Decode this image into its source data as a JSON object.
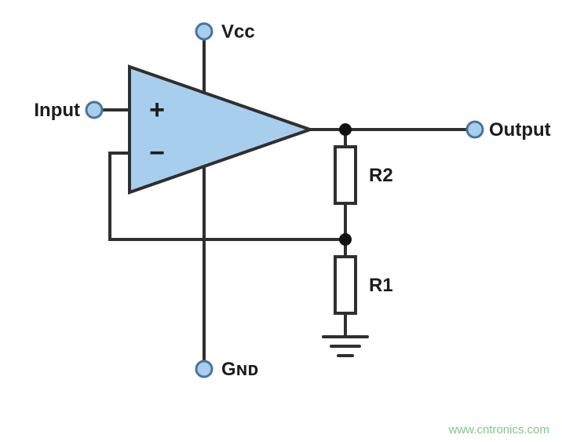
{
  "diagram": {
    "type": "schematic",
    "background_color": "#ffffff",
    "wire_color": "#2f2f2f",
    "wire_width": 4,
    "terminal": {
      "fill": "#a7ceed",
      "stroke": "#47749c",
      "stroke_width": 3,
      "radius": 10
    },
    "node": {
      "fill": "#111111",
      "radius": 8
    },
    "opamp": {
      "fill": "#a7ceed",
      "stroke": "#2f2f2f",
      "stroke_width": 4,
      "plus": "+",
      "minus": "−",
      "symbol_fontsize": 34
    },
    "resistor": {
      "fill": "#ffffff",
      "stroke": "#2f2f2f",
      "stroke_width": 4,
      "width": 26,
      "height": 72
    },
    "labels": {
      "vcc": "Vcc",
      "gnd": "Gɴᴅ",
      "input": "Input",
      "output": "Output",
      "r2": "R2",
      "r1": "R1",
      "fontsize": 24,
      "small_caps_fontsize": 18
    },
    "watermark": {
      "text": "www.cntronics.com",
      "fontsize": 15,
      "color": "#7fc97f"
    }
  }
}
